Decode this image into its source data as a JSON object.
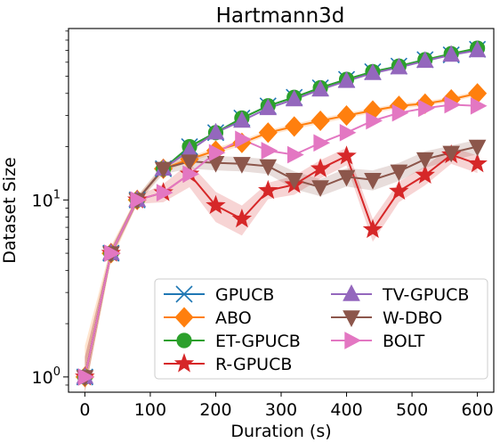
{
  "chart_data": {
    "type": "line",
    "title": "Hartmann3d",
    "xlabel": "Duration (s)",
    "ylabel": "Dataset Size",
    "y_scale": "log",
    "xlim": [
      -25,
      625
    ],
    "ylim": [
      0.82,
      93
    ],
    "grid": false,
    "legend_position": "lower-right",
    "x_ticks": [
      0,
      100,
      200,
      300,
      400,
      500,
      600
    ],
    "x_tick_labels": [
      "0",
      "100",
      "200",
      "300",
      "400",
      "500",
      "600"
    ],
    "y_ticks": [
      1,
      10
    ],
    "y_tick_labels": [
      {
        "base": "10",
        "exp": "0"
      },
      {
        "base": "10",
        "exp": "1"
      }
    ],
    "series": [
      {
        "name": "GPUCB",
        "color": "#1f77b4",
        "marker": "x",
        "x": [
          0,
          40,
          80,
          120,
          160,
          200,
          240,
          280,
          320,
          360,
          400,
          440,
          480,
          520,
          560,
          600
        ],
        "y": [
          1,
          5,
          10,
          15,
          20,
          24,
          29,
          34,
          38,
          43,
          48,
          53,
          57,
          62,
          66,
          71
        ]
      },
      {
        "name": "ABO",
        "color": "#ff7f0e",
        "marker": "D",
        "x": [
          0,
          40,
          80,
          120,
          160,
          200,
          240,
          280,
          320,
          360,
          400,
          440,
          480,
          520,
          560,
          600
        ],
        "y": [
          1,
          5,
          10,
          15,
          17,
          19,
          21,
          24,
          26,
          28,
          30,
          32,
          34,
          35,
          37,
          40
        ],
        "band": [
          0.5,
          0.5,
          0.5,
          0.6,
          0.6,
          0.7,
          0.8,
          0.8,
          0.9,
          1,
          1,
          1,
          1.1,
          1.1,
          1.2,
          1.2
        ]
      },
      {
        "name": "ET-GPUCB",
        "color": "#2ca02c",
        "marker": "o",
        "x": [
          0,
          40,
          80,
          120,
          160,
          200,
          240,
          280,
          320,
          360,
          400,
          440,
          480,
          520,
          560,
          600
        ],
        "y": [
          1,
          5,
          10,
          15,
          20,
          24,
          29,
          34,
          38,
          43,
          48,
          53,
          57,
          62,
          67,
          72
        ]
      },
      {
        "name": "R-GPUCB",
        "color": "#d62728",
        "marker": "*",
        "x": [
          0,
          40,
          80,
          120,
          160,
          200,
          240,
          280,
          320,
          360,
          400,
          440,
          480,
          520,
          560,
          600
        ],
        "y": [
          1,
          5,
          10,
          11,
          14,
          9.3,
          7.8,
          11.3,
          12.2,
          15,
          17.7,
          6.8,
          11.2,
          13.8,
          18,
          16
        ],
        "band": [
          0.3,
          0.3,
          0.5,
          1.3,
          2.2,
          1.8,
          1.5,
          1.2,
          1.5,
          1.8,
          2,
          1,
          1.5,
          1.7,
          2,
          1.8
        ]
      },
      {
        "name": "TV-GPUCB",
        "color": "#9467bd",
        "marker": "^",
        "x": [
          0,
          40,
          80,
          120,
          160,
          200,
          240,
          280,
          320,
          360,
          400,
          440,
          480,
          520,
          560,
          600
        ],
        "y": [
          1,
          5,
          10,
          15,
          19,
          24,
          28,
          33,
          37,
          42,
          47,
          52,
          56,
          61,
          66,
          70
        ]
      },
      {
        "name": "W-DBO",
        "color": "#8c564b",
        "marker": "v",
        "x": [
          0,
          40,
          80,
          120,
          160,
          200,
          240,
          280,
          320,
          360,
          400,
          440,
          480,
          520,
          560,
          600
        ],
        "y": [
          1,
          5,
          10,
          15,
          16.5,
          16.2,
          16,
          15.5,
          13,
          11.8,
          13.5,
          13,
          14.5,
          17,
          18.5,
          20
        ],
        "band": [
          0.3,
          0.3,
          0.5,
          1,
          1.5,
          1.5,
          1.5,
          1.5,
          1.5,
          1.3,
          1.6,
          1.7,
          1.7,
          1.8,
          1.8,
          1.9
        ]
      },
      {
        "name": "BOLT",
        "color": "#e377c2",
        "marker": ">",
        "x": [
          0,
          40,
          80,
          120,
          160,
          200,
          240,
          280,
          320,
          360,
          400,
          440,
          480,
          520,
          560,
          600
        ],
        "y": [
          1,
          5,
          10,
          11,
          14,
          18.5,
          22,
          19,
          18,
          21,
          24,
          28,
          31,
          33,
          34.5,
          34
        ]
      }
    ]
  }
}
